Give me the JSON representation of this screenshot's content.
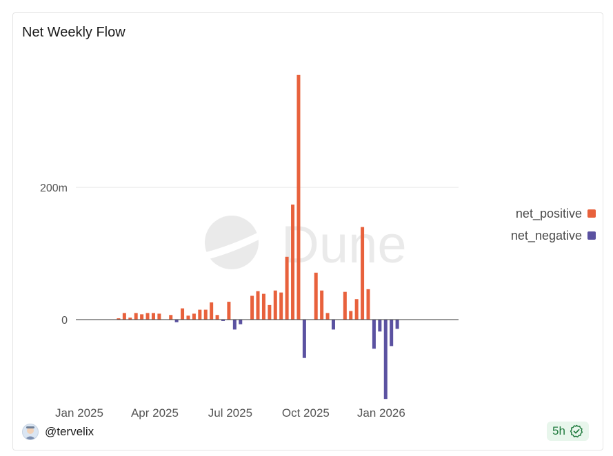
{
  "header": {
    "title": "Net Weekly Flow"
  },
  "watermark": {
    "text": "Dune"
  },
  "footer": {
    "username": "@tervelix",
    "age": "5h"
  },
  "colors": {
    "positive": "#e8613c",
    "negative": "#5b52a1",
    "grid": "#e6e6e6",
    "axis": "#333333"
  },
  "chart_data": {
    "type": "bar",
    "title": "Net Weekly Flow",
    "xlabel": "",
    "ylabel": "",
    "ylim": [
      -120,
      350
    ],
    "yticks": [
      {
        "value": 0,
        "label": "0"
      },
      {
        "value": 200,
        "label": "200m"
      }
    ],
    "xticks": [
      {
        "week": 0,
        "label": "Jan 2025"
      },
      {
        "week": 13,
        "label": "Apr 2025"
      },
      {
        "week": 26,
        "label": "Jul 2025"
      },
      {
        "week": 39,
        "label": "Oct 2025"
      },
      {
        "week": 52,
        "label": "Jan 2026"
      }
    ],
    "legend_position": "right",
    "unit": "m",
    "series": [
      {
        "name": "net_positive",
        "color": "#e8613c",
        "values": [
          0,
          0,
          0,
          0,
          0,
          0,
          0,
          2,
          10,
          3,
          10,
          8,
          10,
          10,
          9,
          0,
          7,
          0,
          17,
          6,
          9,
          15,
          15,
          26,
          7,
          0,
          27,
          0,
          0,
          0,
          36,
          43,
          39,
          22,
          44,
          41,
          95,
          174,
          370,
          0,
          0,
          71,
          44,
          10,
          0,
          0,
          42,
          13,
          31,
          140,
          46,
          0,
          0,
          0,
          0,
          0,
          0
        ]
      },
      {
        "name": "net_negative",
        "color": "#5b52a1",
        "values": [
          0,
          0,
          0,
          0,
          0,
          0,
          0,
          0,
          0,
          0,
          0,
          0,
          0,
          0,
          0,
          0,
          0,
          -4,
          0,
          0,
          0,
          0,
          0,
          0,
          0,
          -2,
          0,
          -15,
          -7,
          0,
          0,
          0,
          0,
          0,
          0,
          0,
          0,
          0,
          0,
          -58,
          0,
          0,
          0,
          0,
          -15,
          0,
          0,
          0,
          0,
          0,
          0,
          -44,
          -18,
          -120,
          -40,
          -14,
          0
        ]
      }
    ]
  }
}
